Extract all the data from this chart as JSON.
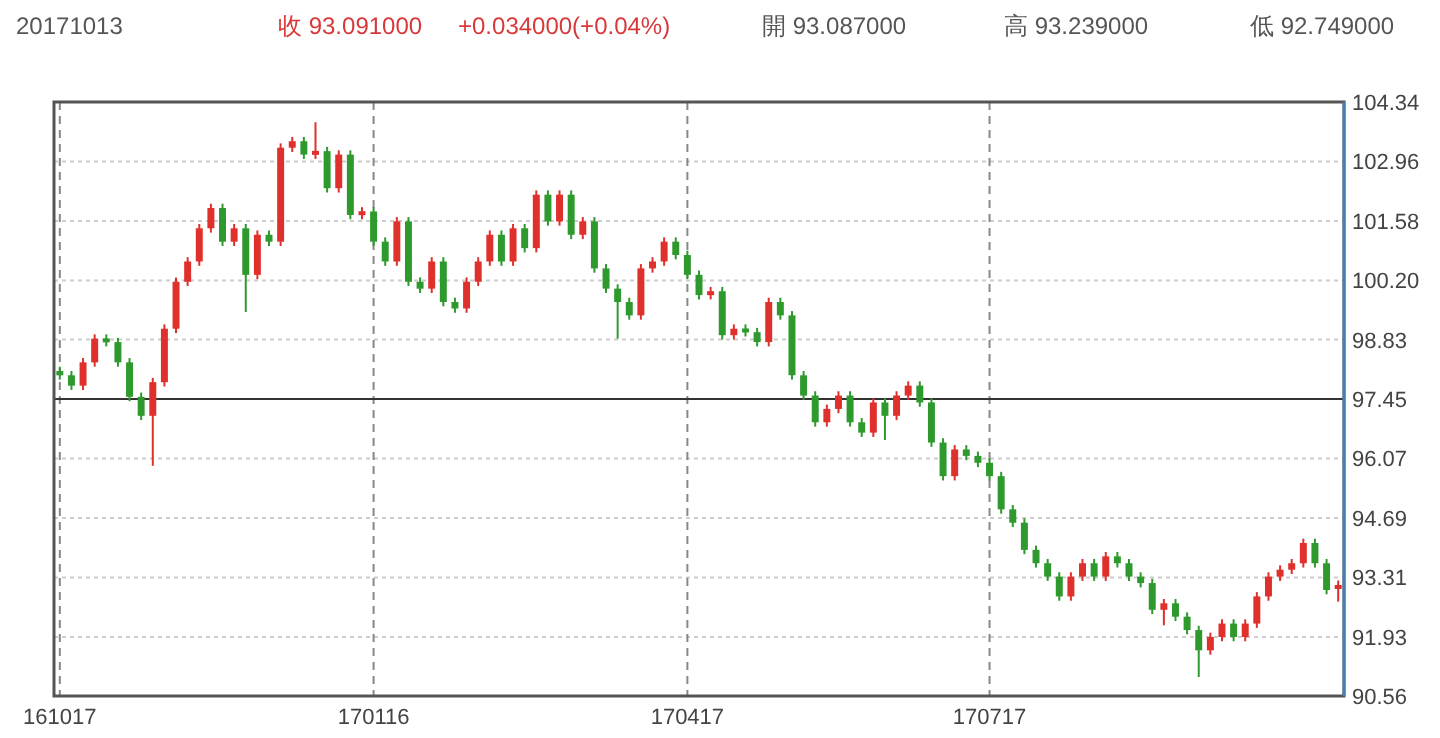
{
  "chart_data": {
    "type": "candlestick",
    "annotations": [
      "20171013",
      "收 93.091000",
      "+0.034000(+0.04%)",
      "開 93.087000",
      "高 93.239000",
      "低 92.749000"
    ],
    "categories": [
      "161017",
      null,
      null,
      null,
      null,
      null,
      null,
      null,
      null,
      null,
      null,
      null,
      null,
      null,
      null,
      null,
      null,
      null,
      null,
      null,
      null,
      null,
      null,
      null,
      null,
      null,
      null,
      "170116",
      null,
      null,
      null,
      null,
      null,
      null,
      null,
      null,
      null,
      null,
      null,
      null,
      null,
      null,
      null,
      null,
      null,
      null,
      null,
      null,
      null,
      null,
      null,
      null,
      null,
      null,
      "170417",
      null,
      null,
      null,
      null,
      null,
      null,
      null,
      null,
      null,
      null,
      null,
      null,
      null,
      null,
      null,
      null,
      null,
      null,
      null,
      null,
      null,
      null,
      null,
      null,
      null,
      "170717",
      null,
      null,
      null,
      null,
      null,
      null,
      null,
      null,
      null,
      null,
      null,
      null,
      null,
      null,
      null,
      null,
      null,
      null,
      null,
      null,
      null,
      null,
      null,
      null,
      null,
      null,
      null,
      null,
      null,
      null
    ],
    "ohlc": [
      [
        98.1,
        98.2,
        97.9,
        98.0
      ],
      [
        98.0,
        98.1,
        97.66,
        97.76
      ],
      [
        97.76,
        98.4,
        97.66,
        98.3
      ],
      [
        98.3,
        98.95,
        98.2,
        98.85
      ],
      [
        98.85,
        98.95,
        98.67,
        98.77
      ],
      [
        98.77,
        98.87,
        98.2,
        98.3
      ],
      [
        98.3,
        98.4,
        97.4,
        97.5
      ],
      [
        97.5,
        97.6,
        96.96,
        97.06
      ],
      [
        97.06,
        97.94,
        95.9,
        97.84
      ],
      [
        97.84,
        99.18,
        97.74,
        99.08
      ],
      [
        99.08,
        100.27,
        98.98,
        100.17
      ],
      [
        100.17,
        100.74,
        100.07,
        100.64
      ],
      [
        100.64,
        101.51,
        100.54,
        101.41
      ],
      [
        101.41,
        101.98,
        101.31,
        101.88
      ],
      [
        101.88,
        101.98,
        101.0,
        101.1
      ],
      [
        101.1,
        101.51,
        101.0,
        101.41
      ],
      [
        101.41,
        101.51,
        99.47,
        100.33
      ],
      [
        100.33,
        101.36,
        100.23,
        101.26
      ],
      [
        101.26,
        101.36,
        101.0,
        101.1
      ],
      [
        101.1,
        103.38,
        101.0,
        103.28
      ],
      [
        103.28,
        103.53,
        103.18,
        103.43
      ],
      [
        103.43,
        103.53,
        103.02,
        103.12
      ],
      [
        103.12,
        103.87,
        103.02,
        103.2
      ],
      [
        103.2,
        103.3,
        102.24,
        102.34
      ],
      [
        102.34,
        103.22,
        102.24,
        103.12
      ],
      [
        103.12,
        103.22,
        101.62,
        101.72
      ],
      [
        101.72,
        101.9,
        101.62,
        101.8
      ],
      [
        101.8,
        101.9,
        101.0,
        101.1
      ],
      [
        101.1,
        101.2,
        100.54,
        100.64
      ],
      [
        100.64,
        101.67,
        100.54,
        101.57
      ],
      [
        101.57,
        101.67,
        100.07,
        100.17
      ],
      [
        100.17,
        100.27,
        99.91,
        100.01
      ],
      [
        100.01,
        100.74,
        99.91,
        100.64
      ],
      [
        100.64,
        100.74,
        99.6,
        99.7
      ],
      [
        99.7,
        99.8,
        99.45,
        99.55
      ],
      [
        99.55,
        100.27,
        99.45,
        100.17
      ],
      [
        100.17,
        100.74,
        100.07,
        100.64
      ],
      [
        100.64,
        101.36,
        100.54,
        101.26
      ],
      [
        101.26,
        101.36,
        100.54,
        100.64
      ],
      [
        100.64,
        101.51,
        100.54,
        101.41
      ],
      [
        101.41,
        101.51,
        100.85,
        100.95
      ],
      [
        100.95,
        102.29,
        100.85,
        102.19
      ],
      [
        102.19,
        102.29,
        101.47,
        101.57
      ],
      [
        101.57,
        102.29,
        101.47,
        102.19
      ],
      [
        102.19,
        102.29,
        101.16,
        101.26
      ],
      [
        101.26,
        101.67,
        101.16,
        101.57
      ],
      [
        101.57,
        101.67,
        100.38,
        100.48
      ],
      [
        100.48,
        100.58,
        99.91,
        100.01
      ],
      [
        100.01,
        100.11,
        98.85,
        99.7
      ],
      [
        99.7,
        99.8,
        99.29,
        99.39
      ],
      [
        99.39,
        100.58,
        99.29,
        100.48
      ],
      [
        100.48,
        100.74,
        100.38,
        100.64
      ],
      [
        100.64,
        101.2,
        100.54,
        101.1
      ],
      [
        101.1,
        101.2,
        100.69,
        100.79
      ],
      [
        100.79,
        100.89,
        100.23,
        100.33
      ],
      [
        100.33,
        100.43,
        99.76,
        99.86
      ],
      [
        99.86,
        100.05,
        99.76,
        99.95
      ],
      [
        99.95,
        100.05,
        98.83,
        98.93
      ],
      [
        98.93,
        99.18,
        98.83,
        99.08
      ],
      [
        99.08,
        99.18,
        98.9,
        99.0
      ],
      [
        99.0,
        99.1,
        98.67,
        98.77
      ],
      [
        98.77,
        99.8,
        98.67,
        99.7
      ],
      [
        99.7,
        99.8,
        99.29,
        99.39
      ],
      [
        99.39,
        99.49,
        97.9,
        98.0
      ],
      [
        98.0,
        98.1,
        97.43,
        97.53
      ],
      [
        97.53,
        97.63,
        96.81,
        96.91
      ],
      [
        96.91,
        97.32,
        96.81,
        97.22
      ],
      [
        97.22,
        97.63,
        97.12,
        97.53
      ],
      [
        97.53,
        97.63,
        96.81,
        96.91
      ],
      [
        96.91,
        97.01,
        96.57,
        96.67
      ],
      [
        96.67,
        97.47,
        96.57,
        97.37
      ],
      [
        97.37,
        97.47,
        96.5,
        97.06
      ],
      [
        97.06,
        97.63,
        96.96,
        97.53
      ],
      [
        97.53,
        97.86,
        97.43,
        97.76
      ],
      [
        97.76,
        97.86,
        97.27,
        97.37
      ],
      [
        97.37,
        97.47,
        96.34,
        96.44
      ],
      [
        96.44,
        96.54,
        95.56,
        95.66
      ],
      [
        95.66,
        96.38,
        95.56,
        96.28
      ],
      [
        96.28,
        96.38,
        96.03,
        96.13
      ],
      [
        96.13,
        96.23,
        95.87,
        95.97
      ],
      [
        95.97,
        96.07,
        95.56,
        95.66
      ],
      [
        95.66,
        95.76,
        94.79,
        94.89
      ],
      [
        94.89,
        94.99,
        94.48,
        94.58
      ],
      [
        94.58,
        94.68,
        93.85,
        93.95
      ],
      [
        93.95,
        94.05,
        93.54,
        93.64
      ],
      [
        93.64,
        93.74,
        93.23,
        93.33
      ],
      [
        93.33,
        93.43,
        92.77,
        92.87
      ],
      [
        92.87,
        93.43,
        92.77,
        93.33
      ],
      [
        93.33,
        93.74,
        93.23,
        93.64
      ],
      [
        93.64,
        93.74,
        93.23,
        93.33
      ],
      [
        93.33,
        93.9,
        93.23,
        93.8
      ],
      [
        93.8,
        93.9,
        93.54,
        93.64
      ],
      [
        93.64,
        93.74,
        93.23,
        93.33
      ],
      [
        93.33,
        93.43,
        93.08,
        93.18
      ],
      [
        93.18,
        93.28,
        92.46,
        92.56
      ],
      [
        92.56,
        92.81,
        92.2,
        92.71
      ],
      [
        92.71,
        92.81,
        92.3,
        92.4
      ],
      [
        92.4,
        92.5,
        91.99,
        92.09
      ],
      [
        92.09,
        92.19,
        91.0,
        91.62
      ],
      [
        91.62,
        92.03,
        91.52,
        91.93
      ],
      [
        91.93,
        92.34,
        91.83,
        92.24
      ],
      [
        92.24,
        92.34,
        91.83,
        91.93
      ],
      [
        91.93,
        92.34,
        91.83,
        92.24
      ],
      [
        92.24,
        92.97,
        92.14,
        92.87
      ],
      [
        92.87,
        93.43,
        92.77,
        93.33
      ],
      [
        93.33,
        93.59,
        93.23,
        93.49
      ],
      [
        93.49,
        93.74,
        93.39,
        93.64
      ],
      [
        93.64,
        94.21,
        93.54,
        94.11
      ],
      [
        94.11,
        94.21,
        93.54,
        93.64
      ],
      [
        93.64,
        93.74,
        92.92,
        93.02
      ],
      [
        93.087,
        93.239,
        92.749,
        93.091
      ]
    ],
    "ylim": [
      90.56,
      104.34
    ],
    "yticks": [
      90.56,
      91.93,
      93.31,
      94.69,
      96.07,
      97.45,
      98.83,
      {
        "value": 100.2,
        "label": "100.20"
      },
      101.58,
      102.96,
      104.34
    ],
    "ref_lines": [
      {
        "axis": "y",
        "value": 97.45,
        "color": "#333333"
      }
    ],
    "grid": true
  }
}
